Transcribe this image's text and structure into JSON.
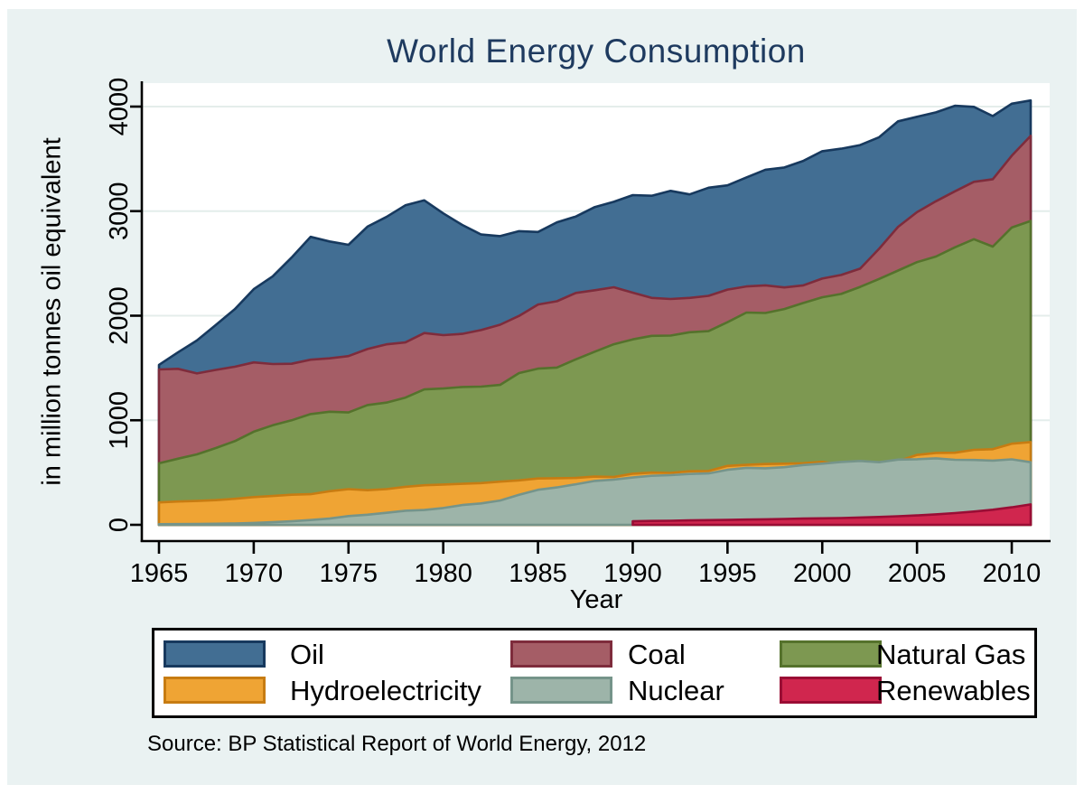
{
  "title": "World Energy Consumption",
  "source_note": "Source: BP Statistical Report of World Energy, 2012",
  "colors": {
    "page_background": "#ffffff",
    "figure_background": "#eaf2f2",
    "plot_background": "#ffffff",
    "grid": "#e4edeb",
    "axis": "#000000",
    "title_text": "#1e3a5f"
  },
  "legend": {
    "position": "bottom",
    "rows": 2,
    "items": [
      {
        "label": "Oil",
        "fill": "#426e93",
        "border": "#17395e"
      },
      {
        "label": "Coal",
        "fill": "#a55d66",
        "border": "#7e2c3c"
      },
      {
        "label": "Natural Gas",
        "fill": "#7d9851",
        "border": "#55722c"
      },
      {
        "label": "Hydroelectricity",
        "fill": "#efa434",
        "border": "#c77c12"
      },
      {
        "label": "Nuclear",
        "fill": "#9db4a9",
        "border": "#75948a"
      },
      {
        "label": "Renewables",
        "fill": "#d0264e",
        "border": "#9a0d35"
      }
    ]
  },
  "chart_data": {
    "type": "area",
    "mode": "overlay-from-zero",
    "title": "World Energy Consumption",
    "xlabel": "Year",
    "ylabel": "in million tonnes oil equivalent",
    "xlim": [
      1965,
      2011
    ],
    "ylim": [
      0,
      4000
    ],
    "xticks": [
      1965,
      1970,
      1975,
      1980,
      1985,
      1990,
      1995,
      2000,
      2005,
      2010
    ],
    "yticks": [
      0,
      1000,
      2000,
      3000,
      4000
    ],
    "grid": true,
    "x": [
      1965,
      1966,
      1967,
      1968,
      1969,
      1970,
      1971,
      1972,
      1973,
      1974,
      1975,
      1976,
      1977,
      1978,
      1979,
      1980,
      1981,
      1982,
      1983,
      1984,
      1985,
      1986,
      1987,
      1988,
      1989,
      1990,
      1991,
      1992,
      1993,
      1994,
      1995,
      1996,
      1997,
      1998,
      1999,
      2000,
      2001,
      2002,
      2003,
      2004,
      2005,
      2006,
      2007,
      2008,
      2009,
      2010,
      2011
    ],
    "series": [
      {
        "name": "Oil",
        "fill": "#426e93",
        "stroke": "#17395e",
        "values": [
          1530,
          1649,
          1763,
          1912,
          2062,
          2254,
          2377,
          2556,
          2754,
          2710,
          2678,
          2852,
          2944,
          3056,
          3103,
          2979,
          2868,
          2777,
          2761,
          2809,
          2801,
          2893,
          2949,
          3039,
          3089,
          3153,
          3147,
          3194,
          3160,
          3224,
          3247,
          3323,
          3396,
          3418,
          3481,
          3573,
          3597,
          3632,
          3707,
          3859,
          3902,
          3945,
          4008,
          3997,
          3909,
          4028,
          4059
        ]
      },
      {
        "name": "Coal",
        "fill": "#a55d66",
        "stroke": "#7e2c3c",
        "values": [
          1486,
          1492,
          1448,
          1482,
          1512,
          1553,
          1538,
          1540,
          1579,
          1592,
          1614,
          1681,
          1726,
          1744,
          1834,
          1814,
          1826,
          1863,
          1914,
          1998,
          2107,
          2138,
          2218,
          2244,
          2272,
          2220,
          2170,
          2160,
          2170,
          2190,
          2250,
          2280,
          2290,
          2270,
          2290,
          2355,
          2390,
          2450,
          2640,
          2850,
          2990,
          3095,
          3190,
          3280,
          3305,
          3530,
          3720
        ]
      },
      {
        "name": "Natural Gas",
        "fill": "#7d9851",
        "stroke": "#55722c",
        "values": [
          588,
          632,
          674,
          734,
          800,
          891,
          952,
          1000,
          1059,
          1082,
          1075,
          1146,
          1169,
          1216,
          1295,
          1304,
          1318,
          1322,
          1338,
          1451,
          1494,
          1504,
          1583,
          1656,
          1727,
          1774,
          1807,
          1810,
          1842,
          1852,
          1938,
          2030,
          2026,
          2064,
          2122,
          2176,
          2208,
          2276,
          2352,
          2432,
          2512,
          2566,
          2654,
          2732,
          2661,
          2843,
          2906
        ]
      },
      {
        "name": "Hydroelectricity",
        "fill": "#efa434",
        "stroke": "#c77c12",
        "values": [
          214,
          223,
          228,
          236,
          249,
          265,
          276,
          288,
          293,
          321,
          341,
          331,
          341,
          364,
          378,
          385,
          392,
          399,
          413,
          425,
          443,
          446,
          448,
          461,
          458,
          489,
          499,
          497,
          512,
          515,
          563,
          574,
          581,
          585,
          589,
          602,
          577,
          581,
          581,
          609,
          669,
          688,
          689,
          717,
          723,
          776,
          791
        ]
      },
      {
        "name": "Nuclear",
        "fill": "#9db4a9",
        "stroke": "#75948a",
        "values": [
          6,
          7,
          8,
          10,
          13,
          18,
          25,
          34,
          46,
          60,
          84,
          97,
          115,
          135,
          142,
          161,
          189,
          205,
          232,
          287,
          335,
          358,
          388,
          420,
          433,
          453,
          469,
          475,
          486,
          492,
          526,
          545,
          541,
          551,
          572,
          585,
          601,
          611,
          599,
          624,
          627,
          636,
          622,
          620,
          614,
          626,
          599
        ]
      },
      {
        "name": "Renewables",
        "fill": "#d0264e",
        "stroke": "#9a0d35",
        "values": [
          null,
          null,
          null,
          null,
          null,
          null,
          null,
          null,
          null,
          null,
          null,
          null,
          null,
          null,
          null,
          null,
          null,
          null,
          null,
          null,
          null,
          null,
          null,
          null,
          null,
          34,
          37,
          39,
          42,
          45,
          47,
          50,
          53,
          56,
          60,
          62,
          65,
          70,
          75,
          82,
          90,
          100,
          112,
          127,
          144,
          168,
          195
        ]
      }
    ]
  }
}
